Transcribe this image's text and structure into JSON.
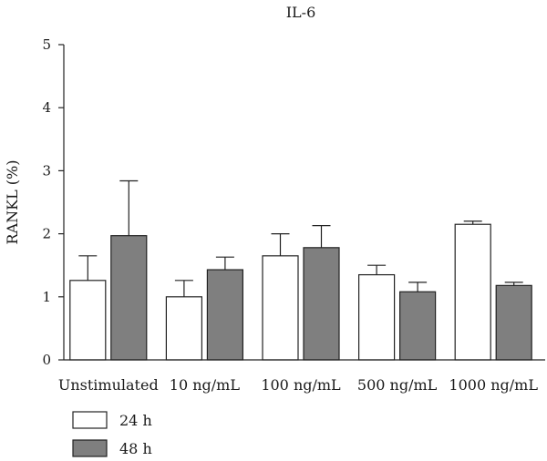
{
  "chart_data": {
    "type": "bar",
    "title": "IL-6",
    "xlabel": "",
    "ylabel": "RANKL (%)",
    "ylim": [
      0,
      5
    ],
    "yticks": [
      "0",
      "1",
      "2",
      "3",
      "4",
      "5"
    ],
    "grid": false,
    "legend_position": "bottom-left",
    "categories": [
      "Unstimulated",
      "10 ng/mL",
      "100 ng/mL",
      "500 ng/mL",
      "1000 ng/mL"
    ],
    "series": [
      {
        "name": "24 h",
        "color": "#ffffff",
        "values": [
          1.26,
          1.0,
          1.65,
          1.35,
          2.15
        ],
        "errors": [
          0.39,
          0.26,
          0.35,
          0.15,
          0.05
        ]
      },
      {
        "name": "48 h",
        "color": "#7f7f7f",
        "values": [
          1.97,
          1.43,
          1.78,
          1.08,
          1.18
        ],
        "errors": [
          0.87,
          0.2,
          0.35,
          0.15,
          0.05
        ]
      }
    ]
  }
}
